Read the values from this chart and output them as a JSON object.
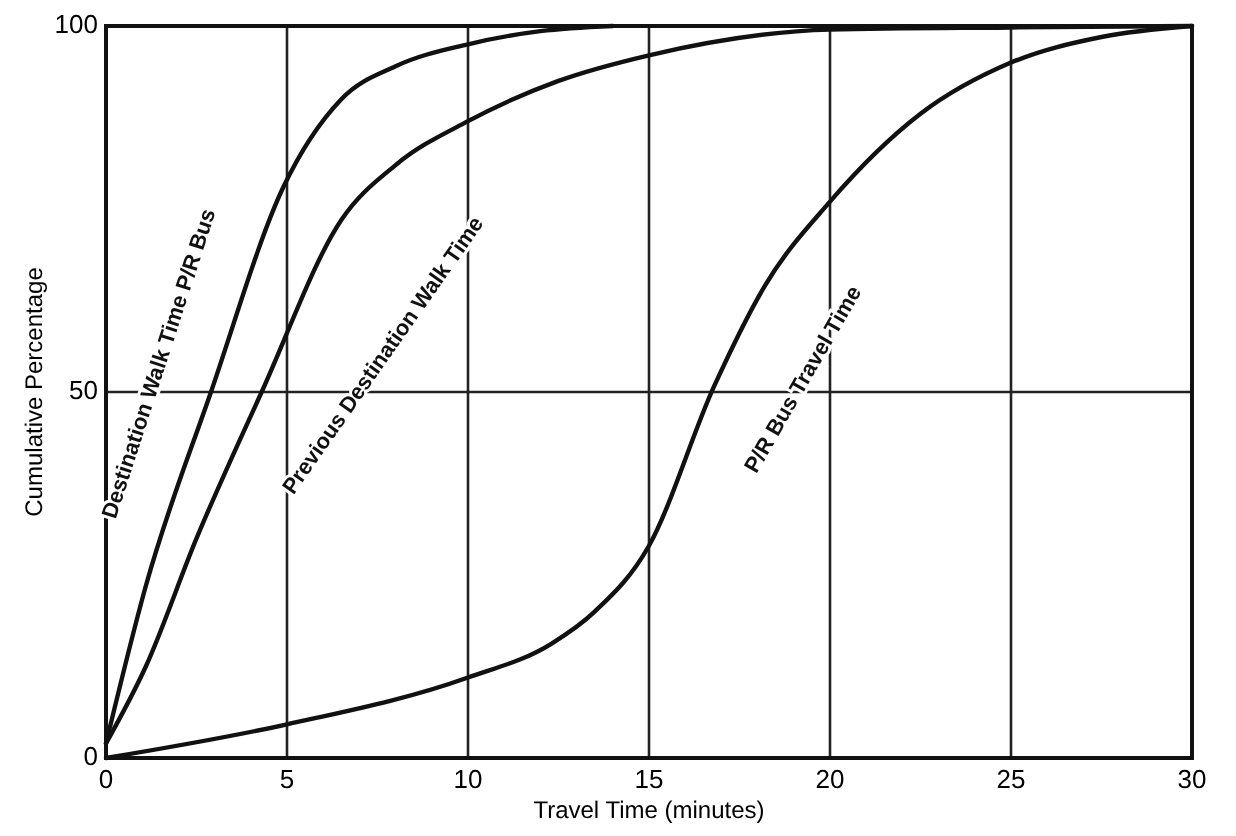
{
  "chart_data": {
    "type": "line",
    "xlabel": "Travel Time (minutes)",
    "ylabel": "Cumulative Percentage",
    "xlim": [
      0,
      30
    ],
    "ylim": [
      0,
      100
    ],
    "xticks": [
      0,
      5,
      10,
      15,
      20,
      25,
      30
    ],
    "yticks": [
      0,
      50,
      100
    ],
    "grid": true,
    "marker": "none",
    "line_style": "solid",
    "series": [
      {
        "name": "Destination Walk Time P/R Bus",
        "color": "#111111",
        "x": [
          0,
          1.1,
          2.9,
          4.9,
          6.5,
          8,
          10,
          12,
          14
        ],
        "values": [
          2,
          23.5,
          50,
          78,
          90,
          94.5,
          97.5,
          99.3,
          100
        ]
      },
      {
        "name": "Previous Destination Walk Time",
        "color": "#111111",
        "x": [
          0,
          1.1,
          2.5,
          4.3,
          6.5,
          8,
          10,
          12.5,
          15,
          20,
          25,
          30
        ],
        "values": [
          2,
          12.5,
          30,
          50,
          73.5,
          81,
          87,
          92.5,
          96,
          99.5,
          99.8,
          100
        ]
      },
      {
        "name": "P/R Bus Travel Time",
        "color": "#111111",
        "x": [
          0,
          5,
          10,
          12.3,
          13.5,
          15,
          16.8,
          18.2,
          20,
          22.5,
          25,
          27.5,
          30
        ],
        "values": [
          0,
          4.6,
          11,
          15.6,
          20,
          29,
          50.8,
          64.5,
          76,
          88,
          95,
          98.5,
          100
        ]
      }
    ]
  }
}
